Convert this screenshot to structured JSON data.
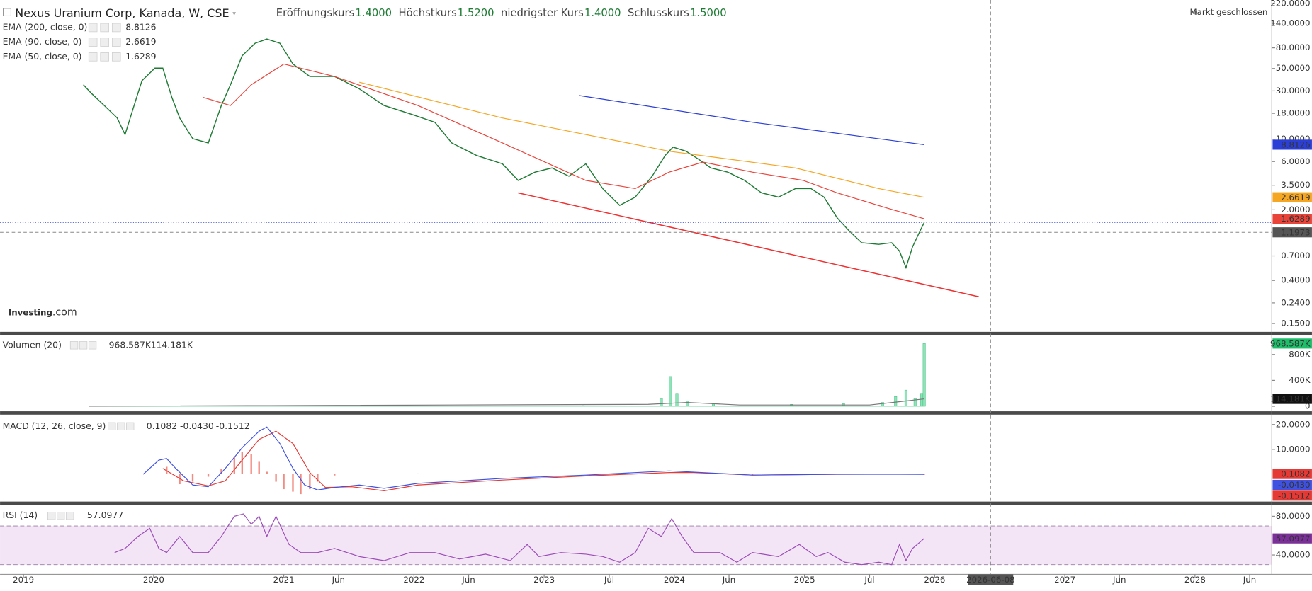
{
  "chart_data": [
    {
      "type": "line",
      "title": "Nexus Uranium Corp, Kanada, W, CSE",
      "ohlc": [
        {
          "label": "Eröffnungskurs",
          "value": "1.4000"
        },
        {
          "label": "Höchstkurs",
          "value": "1.5200"
        },
        {
          "label": "niedrigster Kurs",
          "value": "1.4000"
        },
        {
          "label": "Schlusskurs",
          "value": "1.5000"
        }
      ],
      "status": "Markt geschlossen",
      "logo": "Investing",
      "logo_suffix": ".com",
      "log_scale": true,
      "ylim": [
        0.124,
        229
      ],
      "yticks": [
        {
          "value": 220,
          "label": "220.0000"
        },
        {
          "value": 140,
          "label": "140.0000"
        },
        {
          "value": 80,
          "label": "80.0000"
        },
        {
          "value": 50,
          "label": "50.0000"
        },
        {
          "value": 30,
          "label": "30.0000"
        },
        {
          "value": 18,
          "label": "18.0000"
        },
        {
          "value": 10,
          "label": "10.0000"
        },
        {
          "value": 6,
          "label": "6.0000"
        },
        {
          "value": 3.5,
          "label": "3.5000"
        },
        {
          "value": 2,
          "label": "2.0000"
        },
        {
          "value": 0.7,
          "label": "0.7000"
        },
        {
          "value": 0.4,
          "label": "0.4000"
        },
        {
          "value": 0.24,
          "label": "0.2400"
        },
        {
          "value": 0.15,
          "label": "0.1500"
        }
      ],
      "series": [
        {
          "color": "#1e7b34",
          "x": [
            2019.46,
            2019.52,
            2019.62,
            2019.72,
            2019.78,
            2019.85,
            2019.91,
            2020.01,
            2020.07,
            2020.14,
            2020.2,
            2020.3,
            2020.42,
            2020.52,
            2020.59,
            2020.68,
            2020.78,
            2020.87,
            2020.97,
            2021.07,
            2021.2,
            2021.39,
            2021.58,
            2021.77,
            2021.97,
            2022.16,
            2022.29,
            2022.48,
            2022.68,
            2022.8,
            2022.93,
            2023.06,
            2023.19,
            2023.32,
            2023.45,
            2023.58,
            2023.7,
            2023.83,
            2023.93,
            2023.99,
            2024.09,
            2024.19,
            2024.28,
            2024.41,
            2024.54,
            2024.67,
            2024.8,
            2024.93,
            2025.05,
            2025.15,
            2025.25,
            2025.34,
            2025.44,
            2025.57,
            2025.67,
            2025.73,
            2025.78,
            2025.83,
            2025.89,
            2025.92
          ],
          "values": [
            34.5,
            28.5,
            21.5,
            16.2,
            11.1,
            21.5,
            37.9,
            50.4,
            50.4,
            25.9,
            16.2,
            10.1,
            9.16,
            21.5,
            34.5,
            66.8,
            88.9,
            97.7,
            88.9,
            55.3,
            41.7,
            41.7,
            31.4,
            21.5,
            17.8,
            14.7,
            9.16,
            6.9,
            5.7,
            3.91,
            4.72,
            5.19,
            4.3,
            5.7,
            3.24,
            2.21,
            2.67,
            4.3,
            6.9,
            8.34,
            7.59,
            6.28,
            5.19,
            4.72,
            3.91,
            2.94,
            2.67,
            3.24,
            3.24,
            2.67,
            1.67,
            1.25,
            0.944,
            0.91,
            0.944,
            0.782,
            0.535,
            0.859,
            1.25,
            1.5
          ]
        },
        {
          "name": "EMA (200, close, 0)",
          "color": "#2b3fd6",
          "x": [
            2023.27,
            2024.6,
            2025.92
          ],
          "values": [
            27,
            14.7,
            8.8126
          ]
        },
        {
          "name": "EMA (90, close, 0)",
          "color": "#f5a623",
          "x": [
            2021.58,
            2022.68,
            2023.96,
            2024.93,
            2025.57,
            2025.92
          ],
          "values": [
            36.5,
            16.2,
            7.59,
            5.19,
            3.24,
            2.6619
          ]
        },
        {
          "name": "EMA (50, close, 0)",
          "color": "#e8443a",
          "x": [
            2020.38,
            2020.59,
            2020.75,
            2021.0,
            2021.39,
            2022.03,
            2022.68,
            2023.32,
            2023.7,
            2023.96,
            2024.22,
            2024.6,
            2024.99,
            2025.25,
            2025.63,
            2025.92
          ],
          "values": [
            25.9,
            21.5,
            34.5,
            55.3,
            41.7,
            21.5,
            9.16,
            3.91,
            3.24,
            4.72,
            5.93,
            4.72,
            3.91,
            2.94,
            2.09,
            1.6289
          ]
        }
      ],
      "trendline": {
        "color": "#f03030",
        "x": [
          2022.8,
          2026.34
        ],
        "values": [
          2.94,
          0.276
        ]
      },
      "crosshair": {
        "x": 2026.43,
        "x_label": "2026-06-08",
        "y": 1.1973
      }
    },
    {
      "type": "bar",
      "name": "Volumen (20)",
      "color": "#8fe3b8",
      "x": [
        2021.5,
        2022.5,
        2023.3,
        2023.9,
        2023.97,
        2024.02,
        2024.1,
        2024.3,
        2024.9,
        2025.3,
        2025.6,
        2025.7,
        2025.78,
        2025.85,
        2025.9,
        2025.92
      ],
      "values": [
        5000,
        8000,
        10000,
        120000,
        460000,
        200000,
        80000,
        40000,
        30000,
        40000,
        60000,
        150000,
        250000,
        120000,
        200000,
        968587
      ],
      "moving_average": {
        "color": "#777777",
        "x": [
          2019.5,
          2023.8,
          2024.1,
          2024.5,
          2025.5,
          2025.92
        ],
        "values": [
          2000,
          30000,
          60000,
          20000,
          20000,
          114181
        ]
      },
      "legend_values": [
        "968.587K",
        "114.181K"
      ],
      "ylim": [
        -77000,
        1071000
      ],
      "yticks": [
        0,
        {
          "value": 400000,
          "label": "400K"
        },
        {
          "value": 800000,
          "label": "800K"
        }
      ]
    },
    {
      "type": "line",
      "name": "MACD (12, 26, close, 9)",
      "series": [
        {
          "color": "#e53935",
          "x": [
            2020.07,
            2020.23,
            2020.42,
            2020.55,
            2020.68,
            2020.81,
            2020.94,
            2021.07,
            2021.2,
            2021.32,
            2021.52,
            2021.77,
            2022.03,
            2022.68,
            2023.32,
            2023.96,
            2024.15,
            2024.6,
            2025.25,
            2025.92
          ],
          "values": [
            2.33,
            -2.67,
            -4.67,
            -2.67,
            5.67,
            14,
            17.33,
            12.33,
            0.67,
            -5.33,
            -5,
            -6.67,
            -4.33,
            -2.33,
            -0.67,
            0.67,
            0.67,
            -0.33,
            0,
            0.1082
          ]
        },
        {
          "color": "#3f51e0",
          "x": [
            2019.92,
            2020.04,
            2020.1,
            2020.17,
            2020.3,
            2020.42,
            2020.55,
            2020.68,
            2020.81,
            2020.87,
            2020.97,
            2021.07,
            2021.16,
            2021.26,
            2021.39,
            2021.58,
            2021.77,
            2022.03,
            2022.68,
            2023.32,
            2023.96,
            2024.09,
            2024.6,
            2025.25,
            2025.92
          ],
          "values": [
            0,
            5.67,
            6.33,
            2.33,
            -4.33,
            -5,
            2.33,
            10.67,
            17.33,
            19,
            12.33,
            2.33,
            -4.33,
            -6.33,
            -5.33,
            -4.33,
            -5.67,
            -3.67,
            -1.67,
            -0.33,
            1.33,
            1,
            -0.33,
            0,
            -0.043
          ]
        }
      ],
      "histogram": {
        "color": "#f28b82",
        "x": [
          2020.1,
          2020.2,
          2020.3,
          2020.42,
          2020.52,
          2020.62,
          2020.68,
          2020.75,
          2020.81,
          2020.87,
          2020.94,
          2021.0,
          2021.07,
          2021.13,
          2021.2,
          2021.26,
          2021.39,
          2022.03,
          2022.68,
          2023.32,
          2023.96,
          2024.6,
          2025.25,
          2025.92
        ],
        "values": [
          3,
          -4,
          -3,
          -1,
          2,
          7,
          9,
          8,
          5,
          1,
          -3,
          -6,
          -7,
          -8,
          -6,
          -3,
          -0.5,
          0.3,
          0.3,
          0.2,
          0.3,
          -0.2,
          0.1,
          -0.1512
        ]
      },
      "legend_values": [
        "0.1082",
        "-0.0430",
        "-0.1512"
      ],
      "ylim": [
        -11,
        23.3
      ],
      "yticks": [
        {
          "value": 10,
          "label": "10.0000"
        },
        {
          "value": 20,
          "label": "20.0000"
        }
      ]
    },
    {
      "type": "line",
      "name": "RSI (14)",
      "series": [
        {
          "color": "#9b4db8",
          "x": [
            2019.7,
            2019.78,
            2019.88,
            2019.97,
            2020.04,
            2020.1,
            2020.2,
            2020.3,
            2020.42,
            2020.52,
            2020.62,
            2020.69,
            2020.75,
            2020.81,
            2020.87,
            2020.94,
            2021.04,
            2021.13,
            2021.26,
            2021.39,
            2021.58,
            2021.77,
            2021.97,
            2022.16,
            2022.35,
            2022.55,
            2022.74,
            2022.87,
            2022.96,
            2023.13,
            2023.32,
            2023.45,
            2023.58,
            2023.7,
            2023.8,
            2023.9,
            2023.98,
            2024.06,
            2024.15,
            2024.35,
            2024.48,
            2024.6,
            2024.8,
            2024.96,
            2025.09,
            2025.18,
            2025.31,
            2025.44,
            2025.57,
            2025.67,
            2025.73,
            2025.78,
            2025.83,
            2025.92
          ],
          "values": [
            42.5,
            46.67,
            59.17,
            67.5,
            46.67,
            42.5,
            59.17,
            42.5,
            42.5,
            59.17,
            80,
            82.5,
            71.67,
            80,
            59.17,
            80,
            50.83,
            42.5,
            42.5,
            46.67,
            38.33,
            34.17,
            42.5,
            42.5,
            35.83,
            40.83,
            34.17,
            50.83,
            38.33,
            42.5,
            40.83,
            38.33,
            32.5,
            42.5,
            67.5,
            59.17,
            77.5,
            59.17,
            42.5,
            42.5,
            32.5,
            42.5,
            38.33,
            50.83,
            38.33,
            42.5,
            32.5,
            30,
            32.5,
            30,
            50.83,
            34.17,
            46.67,
            57.0977
          ]
        }
      ],
      "bands": [
        30,
        70
      ],
      "band_color": "#f3e5f5",
      "ylim": [
        20,
        90
      ],
      "yticks": [
        {
          "value": 40,
          "label": "40.0000"
        },
        {
          "value": 80,
          "label": "80.0000"
        }
      ],
      "xlim": [
        2018.82,
        2028.59
      ],
      "xticks": [
        2019,
        2020,
        2021,
        {
          "value": 2021.42,
          "label": "Jun"
        },
        2022,
        {
          "value": 2022.42,
          "label": "Jun"
        },
        2023,
        {
          "value": 2023.5,
          "label": "Jul"
        },
        2024,
        {
          "value": 2024.42,
          "label": "Jun"
        },
        2025,
        {
          "value": 2025.5,
          "label": "Jul"
        },
        2026,
        2027,
        {
          "value": 2027.42,
          "label": "Jun"
        },
        2028,
        {
          "value": 2028.42,
          "label": "Jun"
        }
      ]
    }
  ]
}
